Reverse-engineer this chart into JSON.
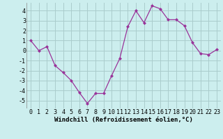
{
  "x": [
    0,
    1,
    2,
    3,
    4,
    5,
    6,
    7,
    8,
    9,
    10,
    11,
    12,
    13,
    14,
    15,
    16,
    17,
    18,
    19,
    20,
    21,
    22,
    23
  ],
  "y": [
    1,
    0,
    0.4,
    -1.5,
    -2.2,
    -3.0,
    -4.2,
    -5.3,
    -4.3,
    -4.3,
    -2.5,
    -0.8,
    2.4,
    4.0,
    2.8,
    4.5,
    4.2,
    3.1,
    3.1,
    2.5,
    0.8,
    -0.3,
    -0.4,
    0.1
  ],
  "line_color": "#993399",
  "marker": "D",
  "marker_size": 2.0,
  "bg_color": "#cceeee",
  "grid_color": "#aacccc",
  "xlabel": "Windchill (Refroidissement éolien,°C)",
  "xlabel_fontsize": 6.5,
  "tick_fontsize": 6,
  "ylim": [
    -5.8,
    4.8
  ],
  "xlim": [
    -0.5,
    23.5
  ],
  "yticks": [
    -5,
    -4,
    -3,
    -2,
    -1,
    0,
    1,
    2,
    3,
    4
  ],
  "xticks": [
    0,
    1,
    2,
    3,
    4,
    5,
    6,
    7,
    8,
    9,
    10,
    11,
    12,
    13,
    14,
    15,
    16,
    17,
    18,
    19,
    20,
    21,
    22,
    23
  ],
  "linewidth": 0.9
}
